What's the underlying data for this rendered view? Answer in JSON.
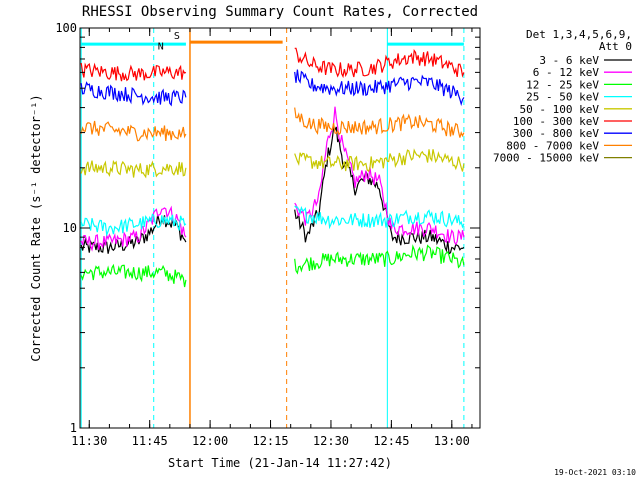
{
  "chart_data": {
    "type": "line",
    "title": "RHESSI Observing Summary Count Rates, Corrected",
    "xlabel": "Start Time (21-Jan-14 11:27:42)",
    "ylabel": "Corrected Count Rate (s⁻¹ detector⁻¹)",
    "y_scale": "log",
    "ylim": [
      1,
      100
    ],
    "xlim": [
      "11:27:42",
      "13:07:00"
    ],
    "x_ticks": [
      "11:30",
      "11:45",
      "12:00",
      "12:15",
      "12:30",
      "12:45",
      "13:00"
    ],
    "y_ticks": [
      "1",
      "10",
      "100"
    ],
    "grid": false,
    "legend_position": "right",
    "legend_header": [
      "Det 1,3,4,5,6,9,",
      "Att 0"
    ],
    "timestamp": "19-Oct-2021 03:10",
    "flags": {
      "night_label": "N",
      "saa_label": "S"
    },
    "series": [
      {
        "name": "3 - 6 keV",
        "color": "#000000",
        "x": [
          "11:28",
          "11:35",
          "11:42",
          "11:45",
          "11:48",
          "11:52",
          "11:54",
          "12:21",
          "12:24",
          "12:27",
          "12:29",
          "12:31",
          "12:33",
          "12:36",
          "12:39",
          "12:42",
          "12:45",
          "12:50",
          "12:55",
          "13:00",
          "13:03"
        ],
        "y": [
          8,
          8,
          8.5,
          9.5,
          11.5,
          10,
          8.5,
          12,
          9,
          12,
          22,
          32,
          22,
          16,
          18,
          16,
          9,
          9,
          9,
          8,
          8
        ]
      },
      {
        "name": "6 - 12 keV",
        "color": "#ff00ff",
        "x": [
          "11:28",
          "11:35",
          "11:42",
          "11:45",
          "11:48",
          "11:52",
          "11:54",
          "12:21",
          "12:24",
          "12:27",
          "12:29",
          "12:31",
          "12:33",
          "12:36",
          "12:39",
          "12:42",
          "12:45",
          "12:50",
          "12:55",
          "13:00",
          "13:03"
        ],
        "y": [
          8.5,
          8.5,
          9,
          10.5,
          13,
          11,
          9,
          13,
          11,
          14,
          26,
          38,
          25,
          17,
          19,
          17,
          10,
          10,
          10,
          9,
          9
        ]
      },
      {
        "name": "12 - 25 keV",
        "color": "#00ff00",
        "x": [
          "11:28",
          "11:35",
          "11:42",
          "11:48",
          "11:54",
          "12:21",
          "12:30",
          "12:40",
          "12:45",
          "12:50",
          "12:55",
          "13:00",
          "13:03"
        ],
        "y": [
          6,
          6,
          6,
          6,
          5.5,
          6.5,
          7,
          7,
          7,
          7.5,
          7.5,
          7,
          6.5
        ]
      },
      {
        "name": "25 - 50 keV",
        "color": "#00ffff",
        "x": [
          "11:28",
          "11:35",
          "11:42",
          "11:48",
          "11:54",
          "12:21",
          "12:30",
          "12:40",
          "12:45",
          "12:50",
          "12:55",
          "13:00",
          "13:03"
        ],
        "y": [
          10.5,
          10,
          10.5,
          11,
          10.5,
          12,
          11,
          11,
          11,
          11.5,
          11.5,
          11,
          10.5
        ]
      },
      {
        "name": "50 - 100 keV",
        "color": "#c8c800",
        "x": [
          "11:28",
          "11:35",
          "11:42",
          "11:48",
          "11:54",
          "12:21",
          "12:30",
          "12:40",
          "12:45",
          "12:50",
          "12:55",
          "13:00",
          "13:03"
        ],
        "y": [
          20,
          20,
          19.5,
          20,
          20,
          22,
          21,
          21,
          22,
          23,
          23,
          21.5,
          21
        ]
      },
      {
        "name": "100 - 300 keV",
        "color": "#ff0000",
        "x": [
          "11:28",
          "11:35",
          "11:42",
          "11:48",
          "11:54",
          "12:21",
          "12:25",
          "12:30",
          "12:35",
          "12:40",
          "12:45",
          "12:50",
          "12:55",
          "13:00",
          "13:03"
        ],
        "y": [
          62,
          60,
          59,
          60,
          60,
          75,
          66,
          62,
          62,
          63,
          68,
          72,
          70,
          64,
          60
        ]
      },
      {
        "name": "300 - 800 keV",
        "color": "#0000ff",
        "x": [
          "11:28",
          "11:35",
          "11:42",
          "11:48",
          "11:54",
          "12:21",
          "12:25",
          "12:30",
          "12:35",
          "12:40",
          "12:45",
          "12:50",
          "12:55",
          "13:00",
          "13:03"
        ],
        "y": [
          50,
          48,
          46,
          45,
          45,
          58,
          52,
          50,
          50,
          50,
          52,
          54,
          53,
          48,
          45
        ]
      },
      {
        "name": "800 - 7000 keV",
        "color": "#ff8000",
        "x": [
          "11:28",
          "11:35",
          "11:42",
          "11:48",
          "11:54",
          "12:21",
          "12:25",
          "12:30",
          "12:35",
          "12:40",
          "12:45",
          "12:50",
          "12:55",
          "13:00",
          "13:03"
        ],
        "y": [
          32,
          31,
          30,
          30,
          29.5,
          37,
          33,
          32,
          32,
          32,
          33,
          34,
          33,
          31,
          30
        ]
      },
      {
        "name": "7000 - 15000 keV",
        "color": "#808000",
        "x": [],
        "y": []
      }
    ],
    "overlays": {
      "night_interval": {
        "label": "N",
        "color": "#00ffff",
        "level": 83,
        "start": "11:28",
        "end": "11:54"
      },
      "saa_interval": {
        "label": "S",
        "color": "#ff8000",
        "level": 85,
        "start": "11:55",
        "end": "12:18"
      },
      "night_interval_2": {
        "color": "#00ffff",
        "level": 83,
        "start": "12:44",
        "end": "13:03"
      },
      "night_lines_solid": [
        "11:28",
        "12:44"
      ],
      "night_lines_dashed": [
        "11:46",
        "13:03"
      ],
      "saa_lines_solid": [
        "11:55"
      ],
      "saa_lines_dashed": [
        "12:19"
      ]
    }
  }
}
